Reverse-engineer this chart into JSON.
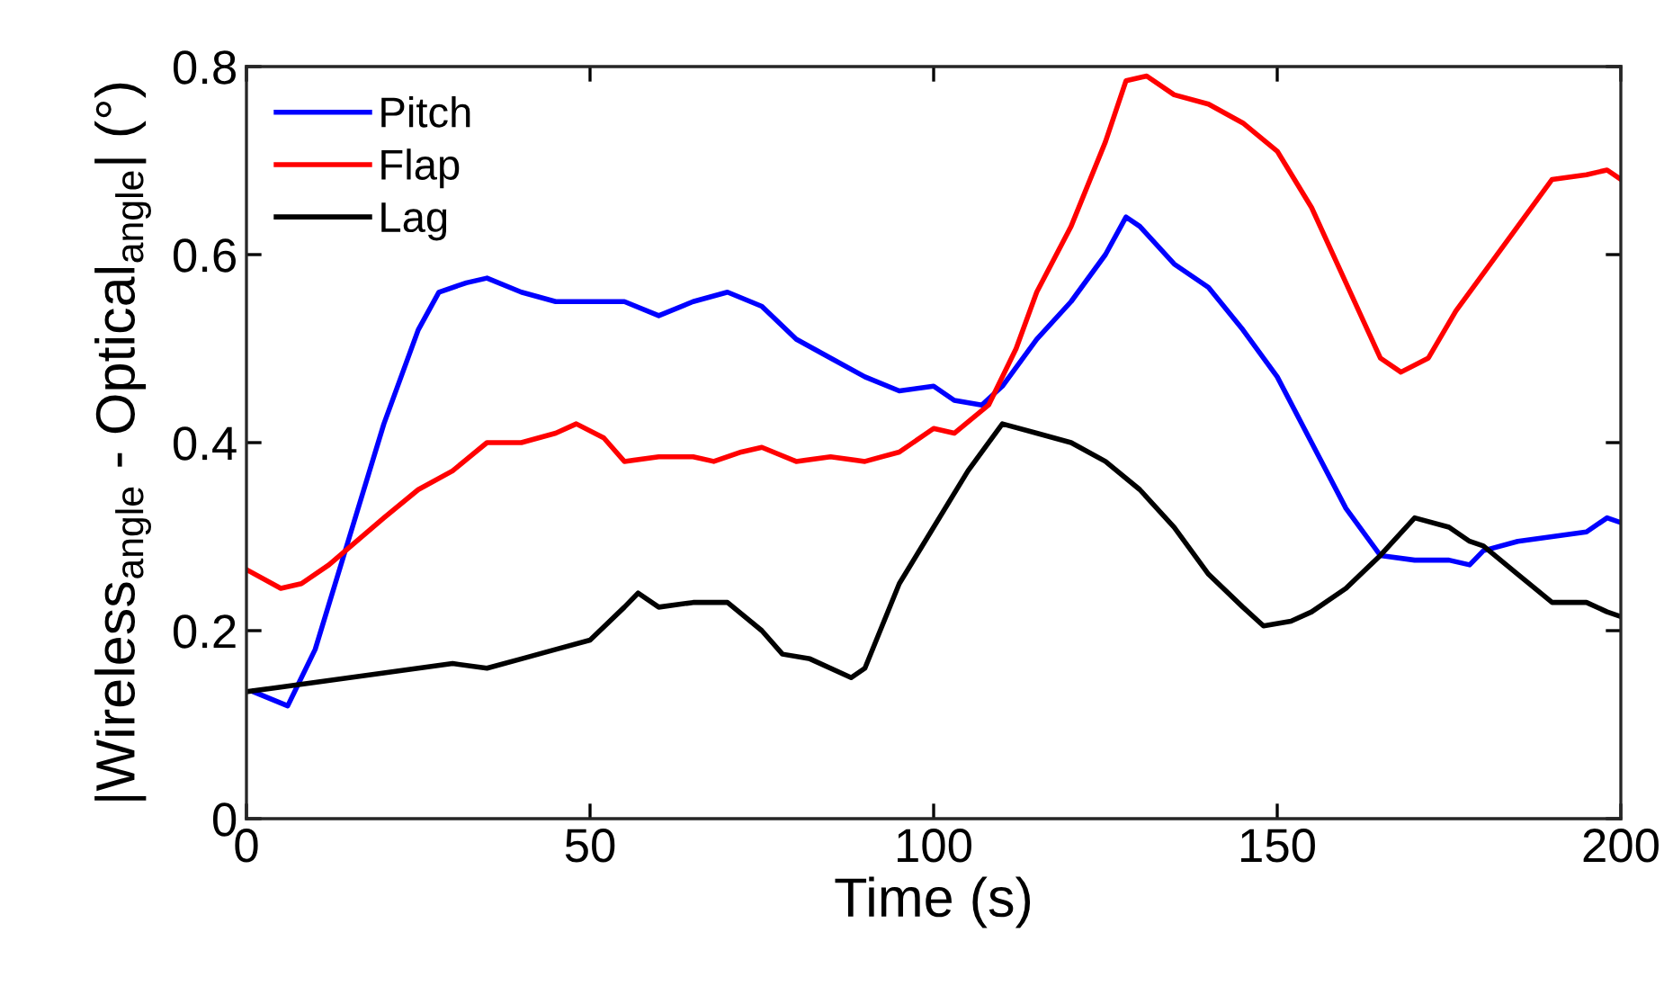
{
  "chart_data": {
    "type": "line",
    "xlabel": "Time (s)",
    "ylabel": "|Wireless$_{angle}$ - Optical$_{angle}$| (°)",
    "xlim": [
      0,
      200
    ],
    "xticks": [
      0,
      50,
      100,
      150,
      200
    ],
    "ylim": [
      0,
      0.8
    ],
    "yticks": [
      0,
      0.2,
      0.4,
      0.6,
      0.8
    ],
    "grid": false,
    "legend": "top left",
    "series": [
      {
        "name": "Pitch",
        "color": "#0000ff",
        "x": [
          1,
          6,
          10,
          15,
          20,
          25,
          28,
          32,
          35,
          40,
          45,
          50,
          55,
          60,
          65,
          70,
          75,
          80,
          85,
          90,
          95,
          100,
          103,
          107,
          110,
          115,
          120,
          125,
          128,
          130,
          135,
          140,
          145,
          150,
          155,
          160,
          165,
          170,
          175,
          178,
          180,
          185,
          190,
          195,
          198,
          200
        ],
        "values": [
          0.135,
          0.12,
          0.18,
          0.3,
          0.42,
          0.52,
          0.56,
          0.57,
          0.575,
          0.56,
          0.55,
          0.55,
          0.55,
          0.535,
          0.55,
          0.56,
          0.545,
          0.51,
          0.49,
          0.47,
          0.455,
          0.46,
          0.445,
          0.44,
          0.46,
          0.51,
          0.55,
          0.6,
          0.64,
          0.63,
          0.59,
          0.565,
          0.52,
          0.47,
          0.4,
          0.33,
          0.28,
          0.275,
          0.275,
          0.27,
          0.285,
          0.295,
          0.3,
          0.305,
          0.32,
          0.315
        ]
      },
      {
        "name": "Flap",
        "color": "#ff0000",
        "x": [
          0,
          5,
          8,
          12,
          20,
          25,
          30,
          35,
          40,
          45,
          48,
          52,
          55,
          60,
          65,
          68,
          72,
          75,
          80,
          85,
          90,
          95,
          100,
          103,
          108,
          112,
          115,
          120,
          125,
          128,
          131,
          135,
          140,
          145,
          150,
          155,
          160,
          165,
          168,
          172,
          176,
          180,
          185,
          190,
          195,
          198,
          200
        ],
        "values": [
          0.265,
          0.245,
          0.25,
          0.27,
          0.32,
          0.35,
          0.37,
          0.4,
          0.4,
          0.41,
          0.42,
          0.405,
          0.38,
          0.385,
          0.385,
          0.38,
          0.39,
          0.395,
          0.38,
          0.385,
          0.38,
          0.39,
          0.415,
          0.41,
          0.44,
          0.5,
          0.56,
          0.63,
          0.72,
          0.785,
          0.79,
          0.77,
          0.76,
          0.74,
          0.71,
          0.65,
          0.57,
          0.49,
          0.475,
          0.49,
          0.54,
          0.58,
          0.63,
          0.68,
          0.685,
          0.69,
          0.68
        ]
      },
      {
        "name": "Lag",
        "color": "#000000",
        "x": [
          0,
          5,
          10,
          15,
          20,
          25,
          30,
          35,
          40,
          45,
          50,
          55,
          57,
          60,
          65,
          70,
          75,
          78,
          82,
          88,
          90,
          95,
          100,
          105,
          110,
          115,
          120,
          125,
          130,
          135,
          140,
          145,
          148,
          152,
          155,
          160,
          165,
          170,
          175,
          178,
          180,
          185,
          190,
          195,
          198,
          200
        ],
        "values": [
          0.135,
          0.14,
          0.145,
          0.15,
          0.155,
          0.16,
          0.165,
          0.16,
          0.17,
          0.18,
          0.19,
          0.225,
          0.24,
          0.225,
          0.23,
          0.23,
          0.2,
          0.175,
          0.17,
          0.15,
          0.16,
          0.25,
          0.31,
          0.37,
          0.42,
          0.41,
          0.4,
          0.38,
          0.35,
          0.31,
          0.26,
          0.225,
          0.205,
          0.21,
          0.22,
          0.245,
          0.28,
          0.32,
          0.31,
          0.295,
          0.29,
          0.26,
          0.23,
          0.23,
          0.22,
          0.215
        ]
      }
    ]
  }
}
